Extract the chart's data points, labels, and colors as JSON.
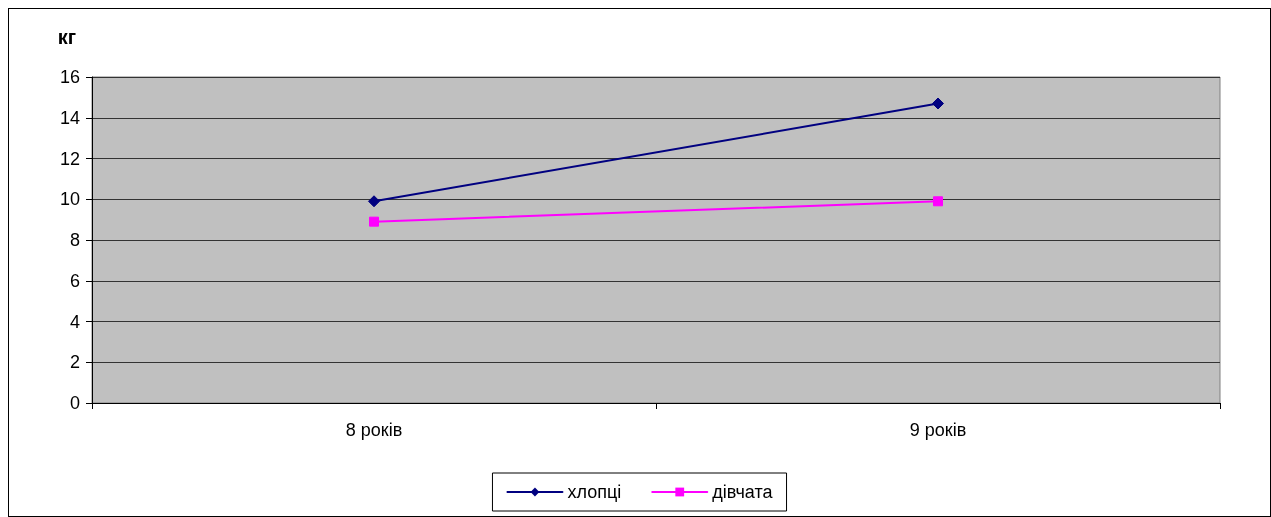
{
  "chart_data": {
    "type": "line",
    "ylabel": "кг",
    "categories": [
      "8 років",
      "9 років"
    ],
    "series": [
      {
        "name": "хлопці",
        "color": "#000080",
        "marker": "diamond",
        "values": [
          9.9,
          14.7
        ]
      },
      {
        "name": "дівчата",
        "color": "#ff00ff",
        "marker": "square",
        "values": [
          8.9,
          9.9
        ]
      }
    ],
    "ylim": [
      0,
      16
    ],
    "yticks": [
      0,
      2,
      4,
      6,
      8,
      10,
      12,
      14,
      16
    ],
    "grid": "y",
    "legend": "bottom",
    "line_style": "solid"
  }
}
